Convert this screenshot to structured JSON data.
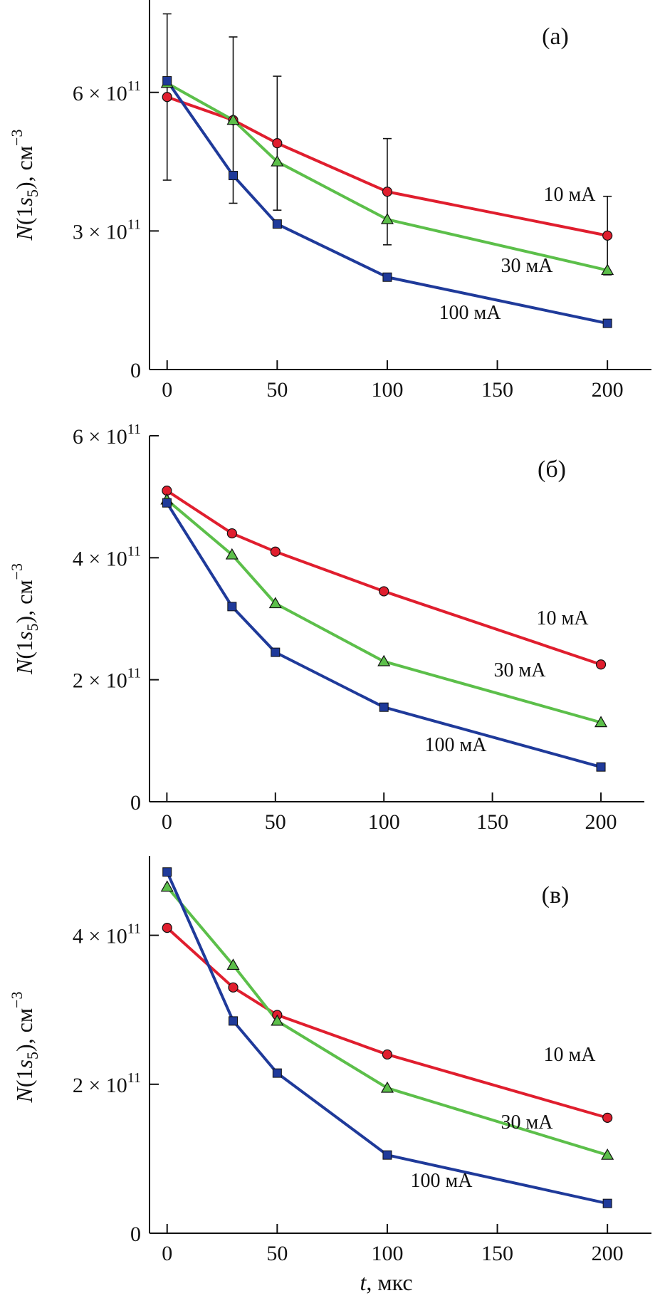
{
  "colors": {
    "10mA": "#e01e2e",
    "30mA": "#5cbf4a",
    "100mA": "#1f3a9a",
    "axis": "#111111"
  },
  "chart_data": [
    {
      "type": "line",
      "panel_label": "(а)",
      "xlabel": "",
      "ylabel": "N(1s5), см−3",
      "ylabel_parts": {
        "n": "N",
        "open": "(1",
        "s": "s",
        "sub": "5",
        "close": "), см",
        "sup": "−3"
      },
      "xlim": [
        -8,
        220
      ],
      "ylim": [
        0,
        8
      ],
      "x_ticks": [
        0,
        50,
        100,
        150,
        200
      ],
      "x_tick_labels": [
        "0",
        "50",
        "100",
        "150",
        "200"
      ],
      "y_ticks": [
        {
          "value": 0,
          "base": "0",
          "exp": ""
        },
        {
          "value": 3,
          "base": "3 × 10",
          "exp": "11"
        },
        {
          "value": 6,
          "base": "6 × 10",
          "exp": "11"
        }
      ],
      "y_unit": "×10^11 см−3",
      "series": [
        {
          "name": "10 мА",
          "label": "10 мА",
          "marker": "circle",
          "color_key": "10mA",
          "x": [
            0,
            30,
            50,
            100,
            200
          ],
          "values": [
            5.9,
            5.4,
            4.9,
            3.85,
            2.9
          ],
          "errors": [
            1.8,
            1.8,
            1.45,
            1.15,
            0.85
          ]
        },
        {
          "name": "30 мА",
          "label": "30 мА",
          "marker": "triangle",
          "color_key": "30mA",
          "x": [
            0,
            30,
            50,
            100,
            200
          ],
          "values": [
            6.2,
            5.4,
            4.5,
            3.25,
            2.15
          ]
        },
        {
          "name": "100 мА",
          "label": "100 мА",
          "marker": "square",
          "color_key": "100mA",
          "x": [
            0,
            30,
            50,
            100,
            200
          ],
          "values": [
            6.25,
            4.2,
            3.15,
            2.0,
            1.0
          ]
        }
      ]
    },
    {
      "type": "line",
      "panel_label": "(б)",
      "xlabel": "",
      "ylabel": "N(1s5), см−3",
      "ylabel_parts": {
        "n": "N",
        "open": "(1",
        "s": "s",
        "sub": "5",
        "close": "), см",
        "sup": "−3"
      },
      "xlim": [
        -8,
        220
      ],
      "ylim": [
        0,
        6
      ],
      "x_ticks": [
        0,
        50,
        100,
        150,
        200
      ],
      "x_tick_labels": [
        "0",
        "50",
        "100",
        "150",
        "200"
      ],
      "y_ticks": [
        {
          "value": 0,
          "base": "0",
          "exp": ""
        },
        {
          "value": 2,
          "base": "2 × 10",
          "exp": "11"
        },
        {
          "value": 4,
          "base": "4 × 10",
          "exp": "11"
        },
        {
          "value": 6,
          "base": "6 × 10",
          "exp": "11"
        }
      ],
      "y_unit": "×10^11 см−3",
      "series": [
        {
          "name": "10 мА",
          "label": "10 мА",
          "marker": "circle",
          "color_key": "10mA",
          "x": [
            0,
            30,
            50,
            100,
            200
          ],
          "values": [
            5.1,
            4.4,
            4.1,
            3.45,
            2.25
          ]
        },
        {
          "name": "30 мА",
          "label": "30 мА",
          "marker": "triangle",
          "color_key": "30mA",
          "x": [
            0,
            30,
            50,
            100,
            200
          ],
          "values": [
            4.95,
            4.05,
            3.25,
            2.3,
            1.3
          ]
        },
        {
          "name": "100 мА",
          "label": "100 мА",
          "marker": "square",
          "color_key": "100mA",
          "x": [
            0,
            30,
            50,
            100,
            200
          ],
          "values": [
            4.9,
            3.2,
            2.45,
            1.55,
            0.57
          ]
        }
      ]
    },
    {
      "type": "line",
      "panel_label": "(в)",
      "xlabel": "t, мкс",
      "xlabel_parts": {
        "t": "t",
        "rest": ", мкс"
      },
      "ylabel": "N(1s5), см−3",
      "ylabel_parts": {
        "n": "N",
        "open": "(1",
        "s": "s",
        "sub": "5",
        "close": "), см",
        "sup": "−3"
      },
      "xlim": [
        -8,
        220
      ],
      "ylim": [
        0,
        5
      ],
      "x_ticks": [
        0,
        50,
        100,
        150,
        200
      ],
      "x_tick_labels": [
        "0",
        "50",
        "100",
        "150",
        "200"
      ],
      "y_ticks": [
        {
          "value": 0,
          "base": "0",
          "exp": ""
        },
        {
          "value": 2,
          "base": "2 × 10",
          "exp": "11"
        },
        {
          "value": 4,
          "base": "4 × 10",
          "exp": "11"
        }
      ],
      "y_unit": "×10^11 см−3",
      "series": [
        {
          "name": "10 мА",
          "label": "10 мА",
          "marker": "circle",
          "color_key": "10mA",
          "x": [
            0,
            30,
            50,
            100,
            200
          ],
          "values": [
            4.1,
            3.3,
            2.93,
            2.4,
            1.55
          ]
        },
        {
          "name": "30 мА",
          "label": "30 мА",
          "marker": "triangle",
          "color_key": "30mA",
          "x": [
            0,
            30,
            50,
            100,
            200
          ],
          "values": [
            4.65,
            3.6,
            2.85,
            1.95,
            1.05
          ]
        },
        {
          "name": "100 мА",
          "label": "100 мА",
          "marker": "square",
          "color_key": "100mA",
          "x": [
            0,
            30,
            50,
            100,
            200
          ],
          "values": [
            4.85,
            2.85,
            2.15,
            1.05,
            0.4
          ]
        }
      ]
    }
  ]
}
